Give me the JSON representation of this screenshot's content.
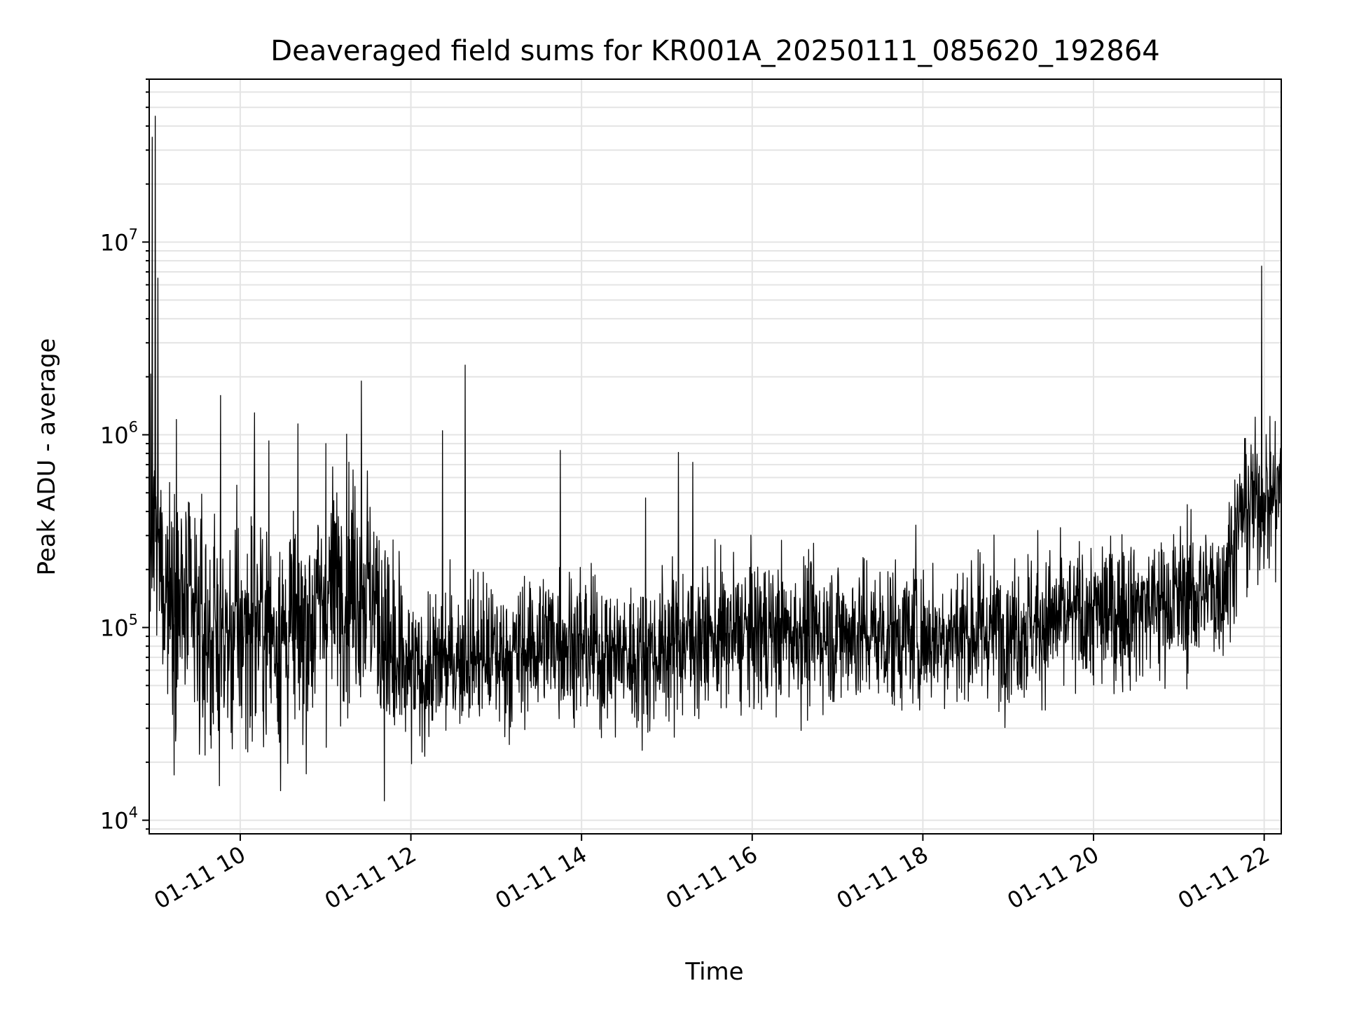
{
  "chart_data": {
    "type": "line",
    "title": "Deaveraged field sums for KR001A_20250111_085620_192864",
    "xlabel": "Time",
    "ylabel": "Peak ADU - average",
    "yscale": "log",
    "x_start": "2025-01-11 08:56:20",
    "x_end": "2025-01-11 22:12:00",
    "xlim": [
      "2025-01-11 08:56",
      "2025-01-11 22:12"
    ],
    "ylim": [
      8500,
      70000000
    ],
    "grid": true,
    "line_color": "#000000",
    "grid_color": "#e4e4e4",
    "x_ticks": [
      {
        "value": "2025-01-11 10:00",
        "label": "01-11 10"
      },
      {
        "value": "2025-01-11 12:00",
        "label": "01-11 12"
      },
      {
        "value": "2025-01-11 14:00",
        "label": "01-11 14"
      },
      {
        "value": "2025-01-11 16:00",
        "label": "01-11 16"
      },
      {
        "value": "2025-01-11 18:00",
        "label": "01-11 18"
      },
      {
        "value": "2025-01-11 20:00",
        "label": "01-11 20"
      },
      {
        "value": "2025-01-11 22:00",
        "label": "01-11 22"
      }
    ],
    "y_ticks": [
      {
        "value": 10000,
        "base": "10",
        "exp": "4"
      },
      {
        "value": 100000,
        "base": "10",
        "exp": "5"
      },
      {
        "value": 1000000,
        "base": "10",
        "exp": "6"
      },
      {
        "value": 10000000,
        "base": "10",
        "exp": "7"
      }
    ],
    "baseline": [
      [
        "2025-01-11 08:56",
        300000
      ],
      [
        "2025-01-11 09:10",
        160000
      ],
      [
        "2025-01-11 09:30",
        100000
      ],
      [
        "2025-01-11 09:50",
        80000
      ],
      [
        "2025-01-11 10:10",
        110000
      ],
      [
        "2025-01-11 10:30",
        90000
      ],
      [
        "2025-01-11 10:50",
        110000
      ],
      [
        "2025-01-11 11:10",
        180000
      ],
      [
        "2025-01-11 11:30",
        170000
      ],
      [
        "2025-01-11 11:50",
        55000
      ],
      [
        "2025-01-11 12:10",
        58000
      ],
      [
        "2025-01-11 12:40",
        75000
      ],
      [
        "2025-01-11 13:10",
        70000
      ],
      [
        "2025-01-11 13:40",
        90000
      ],
      [
        "2025-01-11 14:10",
        75000
      ],
      [
        "2025-01-11 14:40",
        70000
      ],
      [
        "2025-01-11 15:10",
        85000
      ],
      [
        "2025-01-11 15:40",
        90000
      ],
      [
        "2025-01-11 16:10",
        95000
      ],
      [
        "2025-01-11 17:00",
        95000
      ],
      [
        "2025-01-11 18:00",
        90000
      ],
      [
        "2025-01-11 19:00",
        100000
      ],
      [
        "2025-01-11 20:00",
        115000
      ],
      [
        "2025-01-11 21:00",
        140000
      ],
      [
        "2025-01-11 21:30",
        160000
      ],
      [
        "2025-01-11 21:45",
        400000
      ],
      [
        "2025-01-11 22:12",
        520000
      ]
    ],
    "spikes": [
      [
        "2025-01-11 08:58",
        35000000
      ],
      [
        "2025-01-11 09:00",
        45000000
      ],
      [
        "2025-01-11 09:02",
        6500000
      ],
      [
        "2025-01-11 09:15",
        1200000
      ],
      [
        "2025-01-11 09:46",
        1600000
      ],
      [
        "2025-01-11 10:10",
        1300000
      ],
      [
        "2025-01-11 10:20",
        930000
      ],
      [
        "2025-01-11 11:00",
        900000
      ],
      [
        "2025-01-11 11:25",
        1900000
      ],
      [
        "2025-01-11 12:22",
        1050000
      ],
      [
        "2025-01-11 12:38",
        2300000
      ],
      [
        "2025-01-11 13:45",
        830000
      ],
      [
        "2025-01-11 14:45",
        470000
      ],
      [
        "2025-01-11 15:08",
        810000
      ],
      [
        "2025-01-11 15:18",
        720000
      ],
      [
        "2025-01-11 17:55",
        340000
      ],
      [
        "2025-01-11 21:58",
        7500000
      ]
    ]
  }
}
